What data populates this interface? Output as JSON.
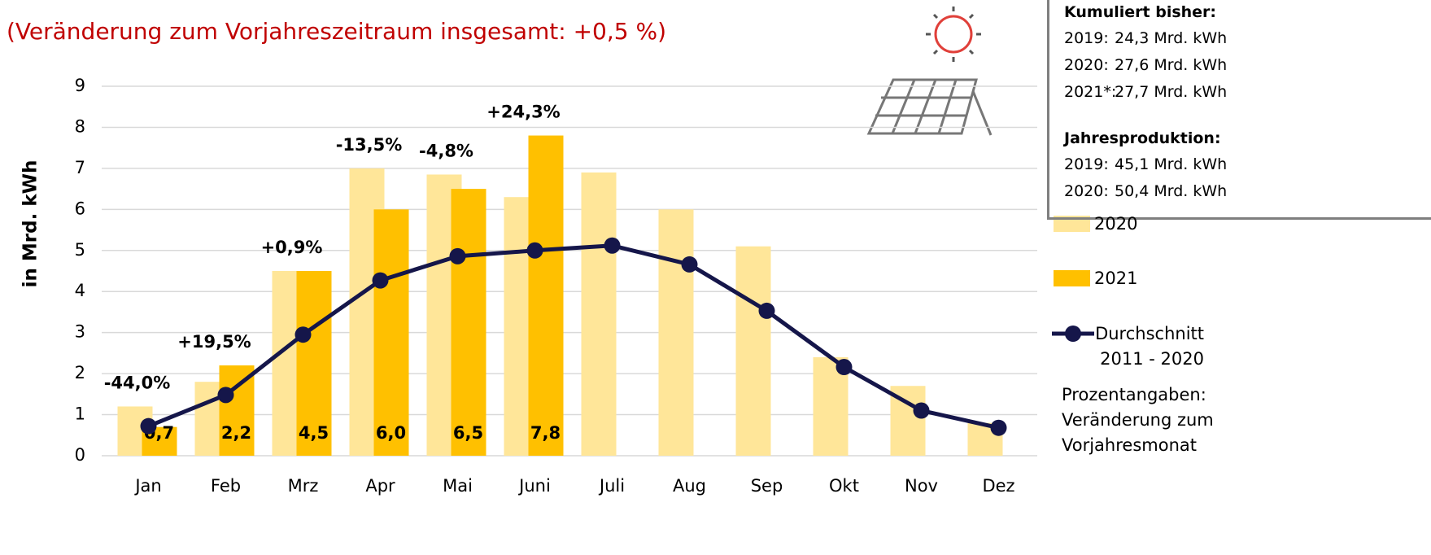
{
  "chart_data": {
    "type": "bar",
    "subtitle": "(Veränderung zum Vorjahreszeitraum insgesamt: +0,5 %)",
    "y_label": "in Mrd. kWh",
    "categories": [
      "Jan",
      "Feb",
      "Mrz",
      "Apr",
      "Mai",
      "Juni",
      "Juli",
      "Aug",
      "Sep",
      "Okt",
      "Nov",
      "Dez"
    ],
    "series": [
      {
        "name": "2020",
        "type": "bar",
        "color": "#ffe699",
        "values": [
          1.2,
          1.8,
          4.5,
          7.0,
          6.85,
          6.3,
          6.9,
          6.0,
          5.1,
          2.4,
          1.7,
          0.8
        ]
      },
      {
        "name": "2021",
        "type": "bar",
        "color": "#ffc000",
        "values": [
          0.7,
          2.2,
          4.5,
          6.0,
          6.5,
          7.8,
          null,
          null,
          null,
          null,
          null,
          null
        ],
        "value_labels": [
          "0,7",
          "2,2",
          "4,5",
          "6,0",
          "6,5",
          "7,8",
          null,
          null,
          null,
          null,
          null,
          null
        ],
        "change_labels": [
          "-44,0%",
          "+19,5%",
          "+0,9%",
          "-13,5%",
          "-4,8%",
          "+24,3%",
          null,
          null,
          null,
          null,
          null,
          null
        ]
      },
      {
        "name": "Durchschnitt 2011 - 2020",
        "type": "line",
        "color": "#15164a",
        "values": [
          0.72,
          1.48,
          2.95,
          4.27,
          4.86,
          5.0,
          5.12,
          4.66,
          3.53,
          2.16,
          1.1,
          0.68
        ]
      }
    ],
    "note": "Prozentangaben: Veränderung zum Vorjahresmonat",
    "ylim": [
      0,
      9
    ],
    "yticks": [
      0,
      1,
      2,
      3,
      4,
      5,
      6,
      7,
      8,
      9
    ],
    "grid": true
  },
  "info_box": {
    "cumulative_title": "Kumuliert bisher:",
    "cumulative": [
      {
        "year": "2019:",
        "value": "24,3 Mrd. kWh"
      },
      {
        "year": "2020:",
        "value": "27,6 Mrd. kWh"
      },
      {
        "year": "2021*:",
        "value": "27,7 Mrd. kWh"
      }
    ],
    "annual_title": "Jahresproduktion:",
    "annual": [
      {
        "year": "2019:",
        "value": "45,1 Mrd. kWh"
      },
      {
        "year": "2020:",
        "value": "50,4 Mrd. kWh"
      }
    ]
  }
}
